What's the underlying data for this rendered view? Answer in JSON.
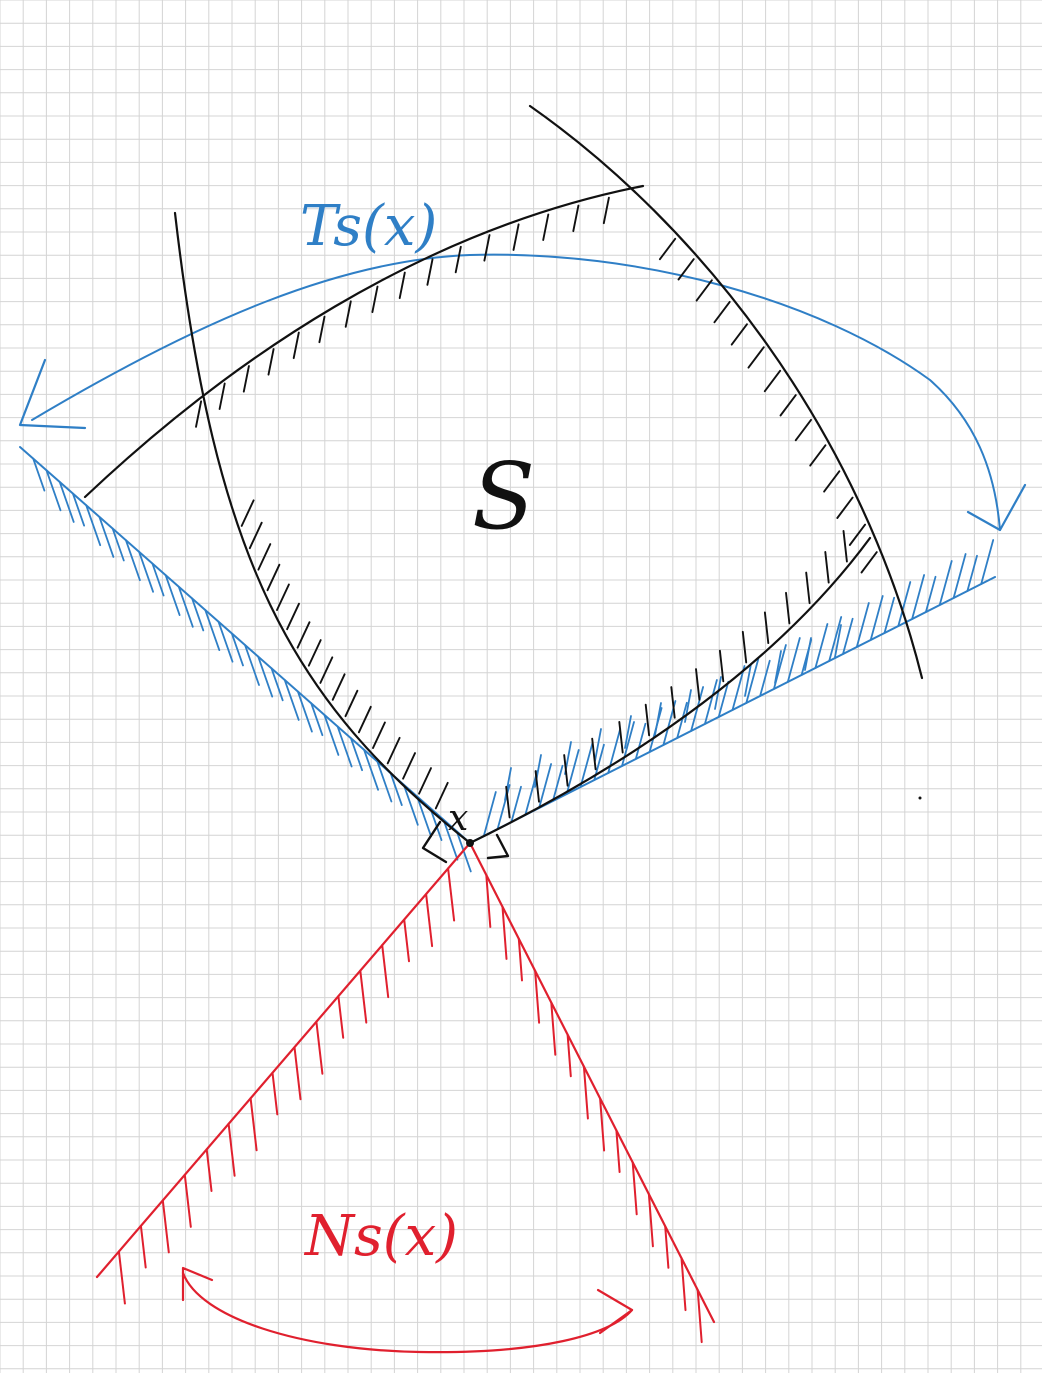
{
  "labels": {
    "set": "S",
    "tangent_cone": "Ts(x)",
    "normal_cone": "Ns(x)",
    "point": "x"
  },
  "colors": {
    "background": "#ffffff",
    "grid": "#d4d4d4",
    "set_ink": "#111111",
    "tangent_ink": "#2f7fc6",
    "normal_ink": "#e0202e"
  }
}
